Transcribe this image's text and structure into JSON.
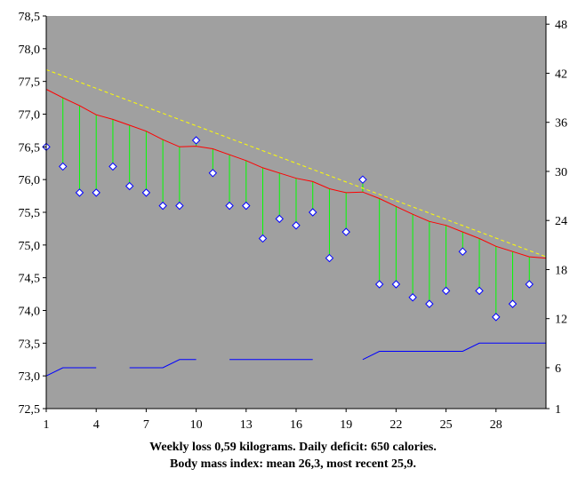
{
  "chart_data": {
    "type": "line",
    "footer_line_1": "Weekly loss 0,59 kilograms. Daily deficit: 650 calories.",
    "footer_line_2": "Body mass index: mean 26,3, most recent 25,9.",
    "colors": {
      "plot_bg": "#a0a0a0",
      "weight_marker": "#0000ff",
      "trend": "#ff0000",
      "projection": "#ffff00",
      "deviation_bar": "#00ff00",
      "secondary_series": "#0000ff"
    },
    "x_ticks": [
      "1",
      "4",
      "7",
      "10",
      "13",
      "16",
      "19",
      "22",
      "25",
      "28"
    ],
    "x_range": [
      1,
      31
    ],
    "y_left": {
      "range": [
        72.5,
        78.5
      ],
      "ticks": [
        "72,5",
        "73,0",
        "73,5",
        "74,0",
        "74,5",
        "75,0",
        "75,5",
        "76,0",
        "76,5",
        "77,0",
        "77,5",
        "78,0",
        "78,5"
      ]
    },
    "y_right": {
      "range": [
        1,
        49
      ],
      "ticks": [
        "1",
        "6",
        "12",
        "18",
        "24",
        "30",
        "36",
        "42",
        "48"
      ]
    },
    "series": [
      {
        "kind": "weight",
        "x": [
          1,
          2,
          3,
          4,
          5,
          6,
          7,
          8,
          9,
          10,
          11,
          12,
          13,
          14,
          15,
          16,
          17,
          18,
          19,
          20,
          21,
          22,
          23,
          24,
          25,
          26,
          27,
          28,
          29,
          30
        ],
        "values": [
          76.5,
          76.2,
          75.8,
          75.8,
          76.2,
          75.9,
          75.8,
          75.6,
          75.6,
          76.6,
          76.1,
          75.6,
          75.6,
          75.1,
          75.4,
          75.3,
          75.5,
          74.8,
          75.2,
          76.0,
          74.4,
          74.4,
          74.2,
          74.1,
          74.3,
          74.9,
          74.3,
          73.9,
          74.1,
          74.4
        ]
      },
      {
        "kind": "trend",
        "x": [
          1,
          2,
          3,
          4,
          5,
          6,
          7,
          8,
          9,
          10,
          11,
          12,
          13,
          14,
          15,
          16,
          17,
          18,
          19,
          20,
          21,
          22,
          23,
          24,
          25,
          26,
          27,
          28,
          29,
          30,
          31
        ],
        "values": [
          77.38,
          77.25,
          77.13,
          76.99,
          76.92,
          76.83,
          76.74,
          76.61,
          76.5,
          76.51,
          76.47,
          76.38,
          76.29,
          76.18,
          76.1,
          76.02,
          75.97,
          75.86,
          75.8,
          75.81,
          75.71,
          75.59,
          75.47,
          75.36,
          75.3,
          75.2,
          75.1,
          74.98,
          74.9,
          74.82,
          74.8
        ]
      },
      {
        "kind": "projection",
        "x": [
          1,
          31
        ],
        "values": [
          77.68,
          74.82
        ]
      },
      {
        "kind": "secondary",
        "axis": "right",
        "segments": [
          {
            "x": [
              1,
              2,
              3,
              4
            ],
            "values": [
              5,
              6,
              6,
              6
            ]
          },
          {
            "x": [
              6,
              7,
              8,
              9,
              10
            ],
            "values": [
              6,
              6,
              6,
              7,
              7
            ]
          },
          {
            "x": [
              12,
              13,
              14,
              15,
              16,
              17
            ],
            "values": [
              7,
              7,
              7,
              7,
              7,
              7
            ]
          },
          {
            "x": [
              20,
              21,
              22,
              23,
              24,
              25,
              26,
              27,
              28,
              29,
              30,
              31
            ],
            "values": [
              7,
              8,
              8,
              8,
              8,
              8,
              8,
              9,
              9,
              9,
              9,
              9
            ]
          }
        ]
      }
    ]
  }
}
